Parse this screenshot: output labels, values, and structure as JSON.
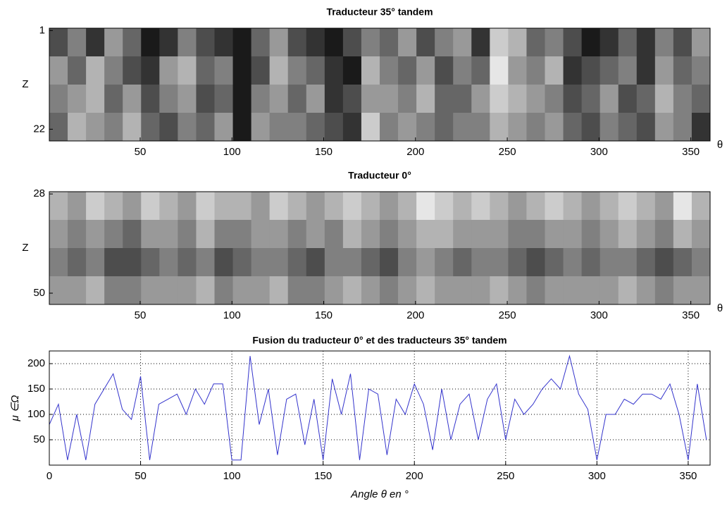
{
  "chart_data": [
    {
      "type": "heatmap",
      "title": "Traducteur 35° tandem",
      "ylabel": "Z",
      "xlabel": "θ",
      "colormap": "gray",
      "xlim": [
        0.5,
        360.5
      ],
      "xticks": [
        50,
        100,
        150,
        200,
        250,
        300,
        350
      ],
      "ylim": [
        0.5,
        24.5
      ],
      "yticks": [
        1,
        22
      ],
      "y_reversed": true,
      "z": [
        [
          0.3,
          0.5,
          0.2,
          0.6,
          0.4,
          0.1,
          0.2,
          0.5,
          0.3,
          0.2,
          0.1,
          0.4,
          0.6,
          0.3,
          0.2,
          0.1,
          0.3,
          0.5,
          0.4,
          0.6,
          0.3,
          0.5,
          0.6,
          0.2,
          0.8,
          0.7,
          0.4,
          0.5,
          0.3,
          0.1,
          0.2,
          0.4,
          0.2,
          0.5,
          0.3,
          0.6
        ],
        [
          0.6,
          0.4,
          0.7,
          0.5,
          0.3,
          0.2,
          0.6,
          0.7,
          0.4,
          0.5,
          0.1,
          0.3,
          0.7,
          0.5,
          0.4,
          0.2,
          0.1,
          0.7,
          0.5,
          0.4,
          0.6,
          0.3,
          0.5,
          0.4,
          0.9,
          0.6,
          0.5,
          0.7,
          0.2,
          0.3,
          0.4,
          0.5,
          0.2,
          0.6,
          0.4,
          0.5
        ],
        [
          0.5,
          0.6,
          0.7,
          0.4,
          0.6,
          0.3,
          0.5,
          0.6,
          0.3,
          0.4,
          0.1,
          0.5,
          0.6,
          0.4,
          0.6,
          0.2,
          0.3,
          0.6,
          0.6,
          0.5,
          0.7,
          0.4,
          0.4,
          0.6,
          0.8,
          0.7,
          0.6,
          0.5,
          0.3,
          0.4,
          0.6,
          0.3,
          0.4,
          0.7,
          0.5,
          0.4
        ],
        [
          0.4,
          0.7,
          0.6,
          0.5,
          0.7,
          0.4,
          0.3,
          0.5,
          0.4,
          0.6,
          0.1,
          0.6,
          0.5,
          0.5,
          0.4,
          0.3,
          0.2,
          0.8,
          0.5,
          0.6,
          0.5,
          0.4,
          0.5,
          0.5,
          0.7,
          0.6,
          0.5,
          0.6,
          0.4,
          0.3,
          0.5,
          0.4,
          0.3,
          0.6,
          0.5,
          0.2
        ]
      ]
    },
    {
      "type": "heatmap",
      "title": "Traducteur 0°",
      "ylabel": "Z",
      "xlabel": "θ",
      "colormap": "gray",
      "xlim": [
        0.5,
        360.5
      ],
      "xticks": [
        50,
        100,
        150,
        200,
        250,
        300,
        350
      ],
      "ylim": [
        27.5,
        52.5
      ],
      "yticks": [
        28,
        50
      ],
      "y_reversed": true,
      "z": [
        [
          0.7,
          0.6,
          0.8,
          0.7,
          0.6,
          0.8,
          0.7,
          0.6,
          0.8,
          0.7,
          0.7,
          0.6,
          0.8,
          0.7,
          0.6,
          0.7,
          0.8,
          0.7,
          0.6,
          0.7,
          0.9,
          0.8,
          0.7,
          0.8,
          0.7,
          0.6,
          0.7,
          0.8,
          0.7,
          0.6,
          0.7,
          0.8,
          0.7,
          0.6,
          0.9,
          0.7
        ],
        [
          0.6,
          0.5,
          0.6,
          0.5,
          0.4,
          0.6,
          0.6,
          0.5,
          0.7,
          0.5,
          0.5,
          0.6,
          0.6,
          0.5,
          0.6,
          0.5,
          0.7,
          0.6,
          0.5,
          0.6,
          0.7,
          0.7,
          0.6,
          0.6,
          0.6,
          0.5,
          0.5,
          0.6,
          0.6,
          0.5,
          0.6,
          0.7,
          0.6,
          0.5,
          0.7,
          0.6
        ],
        [
          0.5,
          0.4,
          0.5,
          0.3,
          0.3,
          0.4,
          0.5,
          0.4,
          0.5,
          0.3,
          0.4,
          0.5,
          0.5,
          0.4,
          0.3,
          0.5,
          0.5,
          0.4,
          0.3,
          0.5,
          0.6,
          0.5,
          0.4,
          0.5,
          0.5,
          0.4,
          0.3,
          0.4,
          0.5,
          0.4,
          0.5,
          0.5,
          0.4,
          0.3,
          0.4,
          0.5
        ],
        [
          0.6,
          0.6,
          0.7,
          0.5,
          0.5,
          0.6,
          0.6,
          0.6,
          0.7,
          0.5,
          0.6,
          0.6,
          0.7,
          0.5,
          0.5,
          0.6,
          0.7,
          0.6,
          0.5,
          0.6,
          0.7,
          0.6,
          0.6,
          0.6,
          0.7,
          0.6,
          0.5,
          0.6,
          0.6,
          0.6,
          0.6,
          0.7,
          0.6,
          0.5,
          0.6,
          0.6
        ]
      ]
    },
    {
      "type": "line",
      "title": "Fusion du traducteur 0° et des traducteurs 35° tandem",
      "xlabel": "Angle θ en °",
      "ylabel": "μ ∈Ω",
      "color": "#3333cc",
      "grid": true,
      "xlim": [
        0,
        362
      ],
      "xticks": [
        0,
        50,
        100,
        150,
        200,
        250,
        300,
        350
      ],
      "ylim": [
        0,
        225
      ],
      "yticks": [
        50,
        100,
        150,
        200
      ],
      "x": [
        0,
        5,
        10,
        15,
        20,
        25,
        30,
        35,
        40,
        45,
        50,
        55,
        60,
        65,
        70,
        75,
        80,
        85,
        90,
        95,
        100,
        105,
        110,
        115,
        120,
        125,
        130,
        135,
        140,
        145,
        150,
        155,
        160,
        165,
        170,
        175,
        180,
        185,
        190,
        195,
        200,
        205,
        210,
        215,
        220,
        225,
        230,
        235,
        240,
        245,
        250,
        255,
        260,
        265,
        270,
        275,
        280,
        285,
        290,
        295,
        300,
        305,
        310,
        315,
        320,
        325,
        330,
        335,
        340,
        345,
        350,
        355,
        360
      ],
      "values": [
        80,
        120,
        10,
        100,
        10,
        120,
        150,
        180,
        110,
        90,
        175,
        10,
        120,
        130,
        140,
        100,
        150,
        120,
        160,
        160,
        10,
        10,
        215,
        80,
        150,
        20,
        130,
        140,
        40,
        130,
        10,
        170,
        100,
        180,
        10,
        150,
        140,
        20,
        130,
        100,
        160,
        120,
        30,
        150,
        50,
        120,
        140,
        50,
        130,
        160,
        50,
        130,
        100,
        120,
        150,
        170,
        150,
        215,
        140,
        110,
        10,
        100,
        100,
        130,
        120,
        140,
        140,
        130,
        160,
        100,
        10,
        160,
        50
      ]
    }
  ]
}
